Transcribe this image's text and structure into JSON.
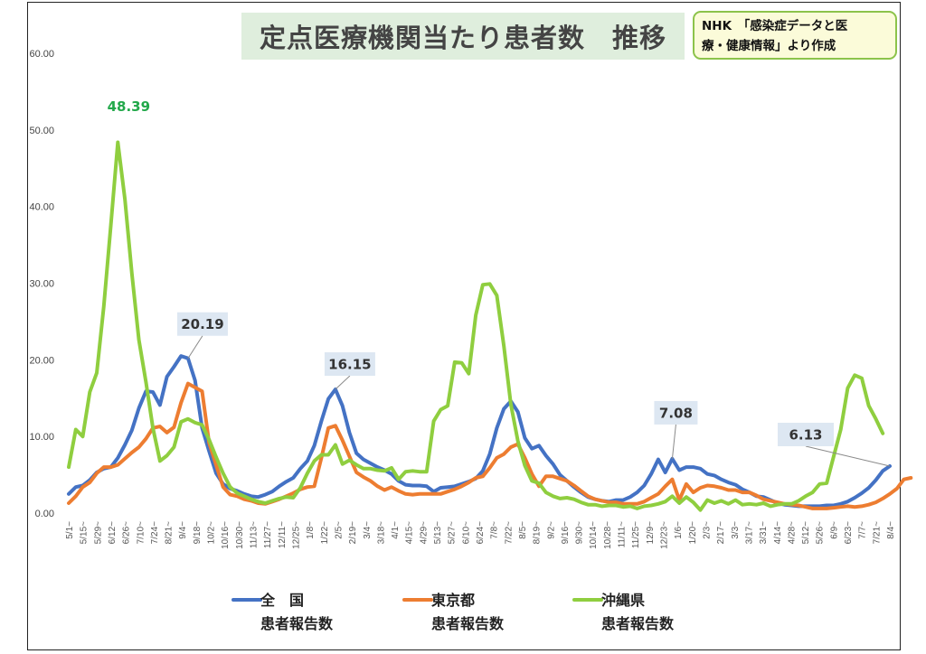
{
  "title": "定点医療機関当たり患者数　推移",
  "source_note": {
    "line1": "NHK　「感染症データと医",
    "line2": "療・健康情報」より作成"
  },
  "colors": {
    "national": "#4472c4",
    "tokyo": "#ed7d31",
    "okinawa": "#8fce3f",
    "okinawa_callout_text": "#22a84a",
    "callout_bg": "#dde7f2"
  },
  "chart_data": {
    "type": "line",
    "title": "定点医療機関当たり患者数　推移",
    "xlabel": "",
    "ylabel": "",
    "ylim": [
      0,
      60
    ],
    "yticks": [
      "0.00",
      "10.00",
      "20.00",
      "30.00",
      "40.00",
      "50.00",
      "60.00"
    ],
    "grid": false,
    "legend_position": "bottom",
    "x_tick_labels": [
      "5/1~",
      "5/15~",
      "5/29~",
      "6/12~",
      "6/26~",
      "7/10~",
      "7/24~",
      "8/21~",
      "9/4~",
      "9/18~",
      "10/2~",
      "10/16~",
      "10/30~",
      "11/13~",
      "11/27~",
      "12/11~",
      "12/25~",
      "1/8~",
      "1/22~",
      "2/5~",
      "2/19~",
      "3/4~",
      "3/18~",
      "4/1~",
      "4/15~",
      "4/29~",
      "5/13~",
      "5/27~",
      "6/10~",
      "6/24~",
      "7/8~",
      "7/22~",
      "8/5~",
      "8/19~",
      "9/2~",
      "9/16~",
      "9/30~",
      "10/14~",
      "10/28~",
      "11/11~",
      "11/25~",
      "12/9~",
      "12/23~",
      "1/6~",
      "1/20~",
      "2/3~",
      "2/17~",
      "3/3~",
      "3/17~",
      "3/31~",
      "4/14~",
      "4/28~",
      "5/12~",
      "5/26~",
      "6/9~",
      "6/23~",
      "7/7~",
      "7/21~",
      "8/4~"
    ],
    "series": [
      {
        "name": "全　国\n患者報告数",
        "legend_line1": "全　国",
        "legend_line2": "患者報告数",
        "color_key": "national",
        "values": [
          2.5,
          3.4,
          3.6,
          4.3,
          5.3,
          5.8,
          6.0,
          7.2,
          8.9,
          10.8,
          13.7,
          15.9,
          15.8,
          14.1,
          17.8,
          19.1,
          20.5,
          20.19,
          17.3,
          11.1,
          8.1,
          5.2,
          3.8,
          3.2,
          2.9,
          2.5,
          2.2,
          2.1,
          2.4,
          2.8,
          3.5,
          4.1,
          4.6,
          5.8,
          6.8,
          8.8,
          12.0,
          14.9,
          16.15,
          14.0,
          10.5,
          7.8,
          7.0,
          6.5,
          6.0,
          5.6,
          5.1,
          4.2,
          3.7,
          3.6,
          3.6,
          3.5,
          2.8,
          3.3,
          3.4,
          3.5,
          3.8,
          4.1,
          4.5,
          5.5,
          7.7,
          11.1,
          13.6,
          14.6,
          13.2,
          9.8,
          8.4,
          8.8,
          7.5,
          6.4,
          5.0,
          4.2,
          3.4,
          2.7,
          2.1,
          1.8,
          1.6,
          1.5,
          1.7,
          1.7,
          2.1,
          2.7,
          3.6,
          5.1,
          7.0,
          5.3,
          7.08,
          5.6,
          6.0,
          6.0,
          5.8,
          5.1,
          4.9,
          4.4,
          4.0,
          3.7,
          3.1,
          2.7,
          2.2,
          2.1,
          1.7,
          1.3,
          1.1,
          1.0,
          0.9,
          0.9,
          0.9,
          0.9,
          1.0,
          1.0,
          1.2,
          1.5,
          2.0,
          2.6,
          3.3,
          4.3,
          5.5,
          6.13
        ]
      },
      {
        "name": "東京都\n患者報告数",
        "legend_line1": "東京都",
        "legend_line2": "患者報告数",
        "color_key": "tokyo",
        "values": [
          1.3,
          2.2,
          3.4,
          4.0,
          5.2,
          6.0,
          6.0,
          6.3,
          7.1,
          7.9,
          8.6,
          9.7,
          11.1,
          11.3,
          10.5,
          11.2,
          14.4,
          16.9,
          16.4,
          15.9,
          9.2,
          6.3,
          3.4,
          2.4,
          2.2,
          1.8,
          1.6,
          1.3,
          1.2,
          1.5,
          1.8,
          2.2,
          2.6,
          3.1,
          3.4,
          3.5,
          7.2,
          11.1,
          11.4,
          9.5,
          7.4,
          5.3,
          4.7,
          4.2,
          3.5,
          3.0,
          3.4,
          2.9,
          2.5,
          2.4,
          2.5,
          2.5,
          2.5,
          2.5,
          2.8,
          3.1,
          3.5,
          4.0,
          4.6,
          4.8,
          5.9,
          7.2,
          7.7,
          8.6,
          9.0,
          7.2,
          5.1,
          3.5,
          4.8,
          4.8,
          4.5,
          4.2,
          3.6,
          2.9,
          2.2,
          1.8,
          1.6,
          1.4,
          1.4,
          1.2,
          1.2,
          1.2,
          1.5,
          2.0,
          2.5,
          3.5,
          4.4,
          1.7,
          3.8,
          2.7,
          3.3,
          3.6,
          3.5,
          3.3,
          3.0,
          3.0,
          2.7,
          2.7,
          2.3,
          1.8,
          1.6,
          1.4,
          1.2,
          1.1,
          1.0,
          0.8,
          0.6,
          0.6,
          0.6,
          0.7,
          0.8,
          0.9,
          0.8,
          0.9,
          1.1,
          1.4,
          1.9,
          2.5,
          3.2,
          4.4,
          4.6
        ]
      },
      {
        "name": "沖縄県\n患者報告数",
        "legend_line1": "沖縄県",
        "legend_line2": "患者報告数",
        "color_key": "okinawa",
        "values": [
          6.0,
          10.9,
          10.0,
          15.8,
          18.3,
          27.0,
          37.6,
          48.39,
          41.0,
          31.3,
          22.6,
          17.1,
          11.1,
          6.8,
          7.5,
          8.6,
          11.9,
          12.3,
          11.8,
          11.5,
          9.6,
          7.3,
          5.2,
          3.4,
          2.6,
          2.2,
          1.8,
          1.5,
          1.3,
          1.6,
          1.9,
          2.1,
          2.0,
          3.3,
          5.2,
          6.8,
          7.6,
          7.6,
          8.9,
          6.4,
          6.9,
          6.3,
          5.8,
          5.8,
          5.6,
          5.5,
          5.9,
          4.4,
          5.4,
          5.5,
          5.4,
          5.4,
          12.0,
          13.5,
          14.0,
          19.7,
          19.6,
          18.2,
          25.8,
          29.8,
          29.9,
          28.4,
          21.8,
          14.2,
          9.4,
          6.2,
          4.2,
          3.9,
          2.7,
          2.2,
          1.9,
          2.0,
          1.8,
          1.4,
          1.1,
          1.1,
          0.9,
          1.0,
          1.0,
          0.8,
          0.9,
          0.6,
          0.9,
          1.0,
          1.2,
          1.5,
          2.2,
          1.3,
          2.1,
          1.4,
          0.4,
          1.7,
          1.3,
          1.6,
          1.2,
          1.7,
          1.1,
          1.2,
          1.1,
          1.3,
          0.9,
          1.1,
          1.2,
          1.2,
          1.6,
          2.2,
          2.7,
          3.8,
          3.9,
          7.4,
          10.9,
          16.3,
          18.0,
          17.6,
          14.0,
          12.3,
          10.4
        ]
      }
    ],
    "annotations": [
      {
        "text": "48.39",
        "series": "沖縄県",
        "point_index": 7,
        "value": 48.39
      },
      {
        "text": "20.19",
        "series": "全　国",
        "point_index": 17,
        "value": 20.19
      },
      {
        "text": "16.15",
        "series": "全　国",
        "point_index": 38,
        "value": 16.15
      },
      {
        "text": "7.08",
        "series": "全　国",
        "point_index": 86,
        "value": 7.08
      },
      {
        "text": "6.13",
        "series": "全　国",
        "point_index": 117,
        "value": 6.13
      }
    ]
  }
}
